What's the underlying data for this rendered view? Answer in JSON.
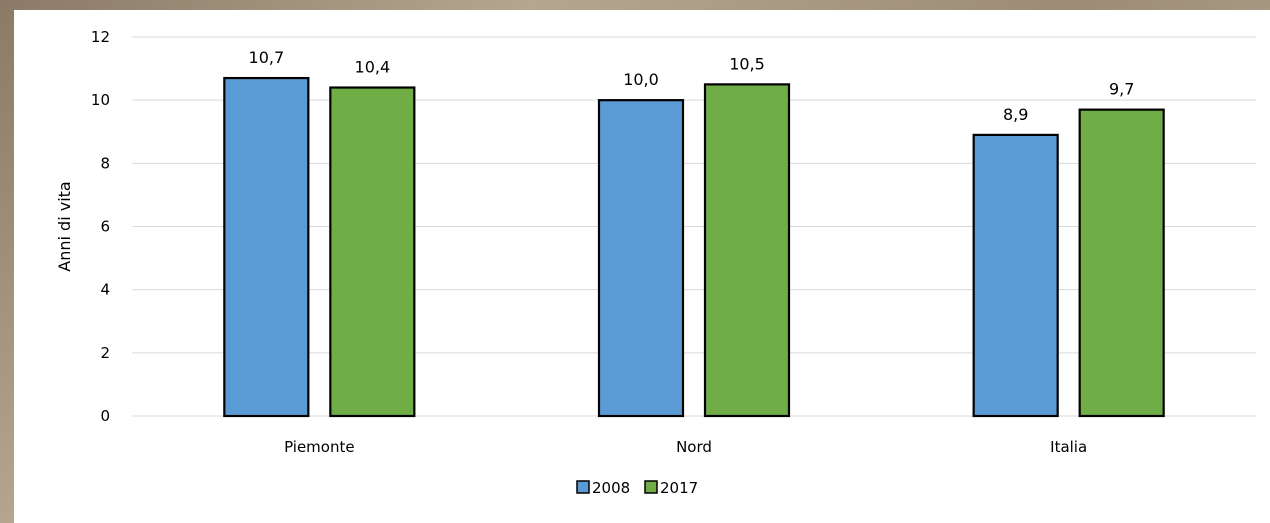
{
  "chart_data": {
    "type": "bar",
    "title": "",
    "xlabel": "",
    "ylabel": "Anni di vita",
    "categories": [
      "Piemonte",
      "Nord",
      "Italia"
    ],
    "series": [
      {
        "name": "2008",
        "values": [
          10.7,
          10.0,
          8.9
        ],
        "labels": [
          "10,7",
          "10,0",
          "8,9"
        ],
        "color": "#5b9bd5"
      },
      {
        "name": "2017",
        "values": [
          10.4,
          10.5,
          9.7
        ],
        "labels": [
          "10,4",
          "10,5",
          "9,7"
        ],
        "color": "#70ad47"
      }
    ],
    "ylim": [
      0,
      12
    ],
    "yticks": [
      0,
      2,
      4,
      6,
      8,
      10,
      12
    ],
    "grid": true,
    "legend": "bottom-center"
  }
}
